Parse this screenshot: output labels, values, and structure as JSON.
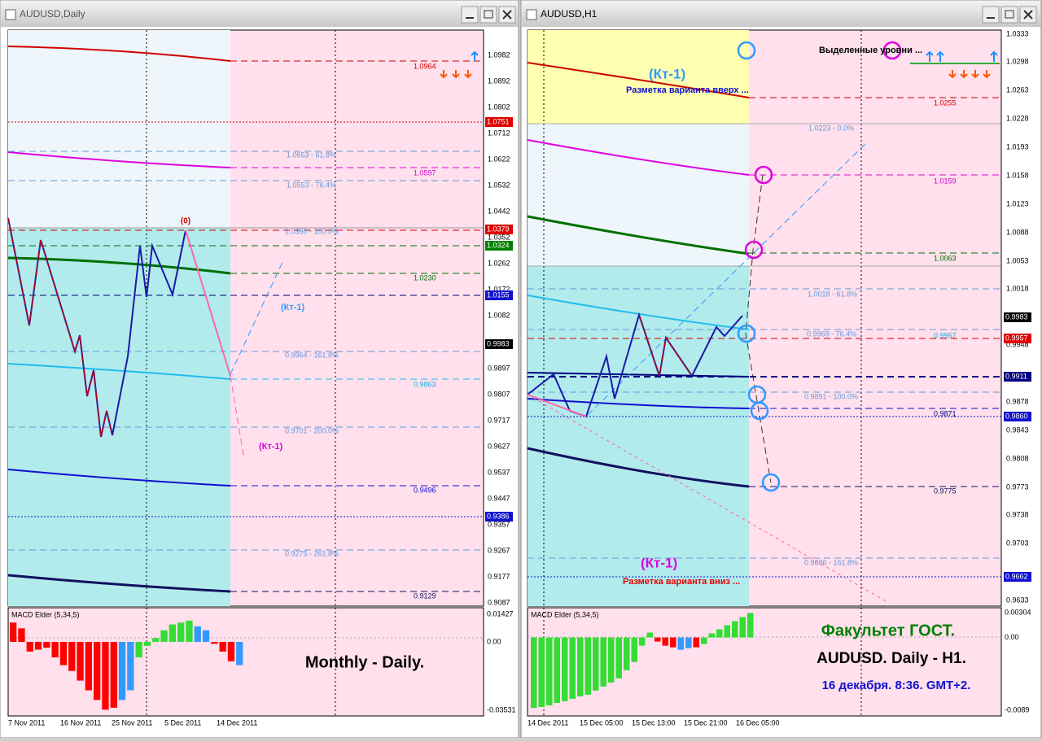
{
  "windows": [
    {
      "title": "AUDUSD,Daily",
      "price_axis": [
        "1.0982",
        "1.0892",
        "1.0802",
        "1.0712",
        "1.0622",
        "1.0532",
        "1.0442",
        "1.0352",
        "1.0262",
        "1.0172",
        "1.0082",
        "0.9897",
        "0.9807",
        "0.9717",
        "0.9627",
        "0.9537",
        "0.9447",
        "0.9357",
        "0.9267",
        "0.9177",
        "0.9087"
      ],
      "price_markers": [
        {
          "label": "1.0751",
          "color": "#e00000"
        },
        {
          "label": "1.0379",
          "color": "#e00000"
        },
        {
          "label": "1.0324",
          "color": "#008000"
        },
        {
          "label": "1.0155",
          "color": "#1010d0"
        },
        {
          "label": "0.9983",
          "color": "#000000"
        },
        {
          "label": "0.9386",
          "color": "#1010d0"
        }
      ],
      "levels": [
        "1.0964",
        "1.0653 - 61.8%",
        "1.0597",
        "1.0553 - 76.4%",
        "1.0390 - 100.0%",
        "1.0230",
        "0.9964 - 161.8%",
        "0.9863",
        "0.9701 - 200.0%",
        "0.9496",
        "0.9275 - 261.8%",
        "0.9129"
      ],
      "annotations": [
        "(0)",
        "(Кт-1)",
        "(Кт-1)"
      ],
      "dates": [
        "7 Nov 2011",
        "16 Nov 2011",
        "25 Nov 2011",
        "5 Dec 2011",
        "14 Dec 2011"
      ],
      "macd": {
        "name": "MACD Elder (5,34,5)",
        "ticks": [
          0.01427,
          {
            "value": 0,
            "label": "0.00"
          },
          -0.03531
        ],
        "values": [
          0.01,
          0.007,
          -0.005,
          -0.004,
          -0.003,
          -0.008,
          -0.012,
          -0.015,
          -0.02,
          -0.025,
          -0.03,
          -0.035,
          -0.034,
          -0.03,
          -0.025,
          -0.008,
          -0.002,
          0.002,
          0.006,
          0.009,
          0.01,
          0.011,
          0.008,
          0.006,
          -0.001,
          -0.005,
          -0.01,
          -0.012
        ],
        "colors": [
          "#ff0000",
          "#ff0000",
          "#ff0000",
          "#ff0000",
          "#ff0000",
          "#ff0000",
          "#ff0000",
          "#ff0000",
          "#ff0000",
          "#ff0000",
          "#ff0000",
          "#ff0000",
          "#ff0000",
          "#3399ff",
          "#3399ff",
          "#33dd33",
          "#33dd33",
          "#33dd33",
          "#33dd33",
          "#33dd33",
          "#33dd33",
          "#33dd33",
          "#3399ff",
          "#3399ff",
          "#ff0000",
          "#ff0000",
          "#ff0000",
          "#3399ff"
        ]
      },
      "caption": [
        "Monthly - Daily."
      ]
    },
    {
      "title": "AUDUSD,H1",
      "price_axis": [
        "1.0333",
        "1.0298",
        "1.0263",
        "1.0228",
        "1.0193",
        "1.0158",
        "1.0123",
        "1.0088",
        "1.0053",
        "1.0018",
        "0.9948",
        "0.9878",
        "0.9843",
        "0.9808",
        "0.9773",
        "0.9738",
        "0.9703",
        "0.9633"
      ],
      "price_markers": [
        {
          "label": "0.9983",
          "color": "#000000"
        },
        {
          "label": "0.9957",
          "color": "#e00000"
        },
        {
          "label": "0.9911",
          "color": "#000080"
        },
        {
          "label": "0.9860",
          "color": "#1010d0"
        },
        {
          "label": "0.9662",
          "color": "#1010d0"
        }
      ],
      "levels": [
        "1.0255",
        "1.0223 - 0.0%",
        "1.0159",
        "1.0063",
        "1.0018 - 61.8%",
        "0.9969 - 76.4%",
        "0.9967",
        "0.9891 - 100.0%",
        "0.9871",
        "0.9775",
        "0.9686 - 161.8%"
      ],
      "annotations": [
        "(Кт-1)",
        "Разметка варианта вверх ...",
        "Выделенные уровни ...",
        "(Кт-1)",
        "Разметка варианта вниз ..."
      ],
      "dates": [
        "14 Dec 2011",
        "15 Dec 05:00",
        "15 Dec 13:00",
        "15 Dec 21:00",
        "16 Dec 05:00"
      ],
      "macd": {
        "name": "MACD Elder (5,34,5)",
        "ticks": [
          0.00304,
          {
            "value": 0,
            "label": "0.00"
          },
          -0.0089
        ],
        "values": [
          -0.0086,
          -0.0085,
          -0.0083,
          -0.008,
          -0.0078,
          -0.0075,
          -0.0072,
          -0.007,
          -0.0065,
          -0.006,
          -0.0055,
          -0.005,
          -0.004,
          -0.003,
          -0.001,
          0.0006,
          -0.0005,
          -0.001,
          -0.0012,
          -0.0015,
          -0.0013,
          -0.0012,
          -0.0008,
          0.0005,
          0.001,
          0.0015,
          0.002,
          0.0025,
          0.003
        ],
        "colors": [
          "#33dd33",
          "#33dd33",
          "#33dd33",
          "#33dd33",
          "#33dd33",
          "#33dd33",
          "#33dd33",
          "#33dd33",
          "#33dd33",
          "#33dd33",
          "#33dd33",
          "#33dd33",
          "#33dd33",
          "#33dd33",
          "#33dd33",
          "#33dd33",
          "#ff0000",
          "#ff0000",
          "#ff0000",
          "#3399ff",
          "#3399ff",
          "#ff0000",
          "#33dd33",
          "#33dd33",
          "#33dd33",
          "#33dd33",
          "#33dd33",
          "#33dd33",
          "#33dd33"
        ]
      },
      "caption": [
        "Факультет ГОСТ.",
        "AUDUSD. Daily - H1.",
        "16 декабря. 8:36. GMT+2."
      ]
    }
  ]
}
